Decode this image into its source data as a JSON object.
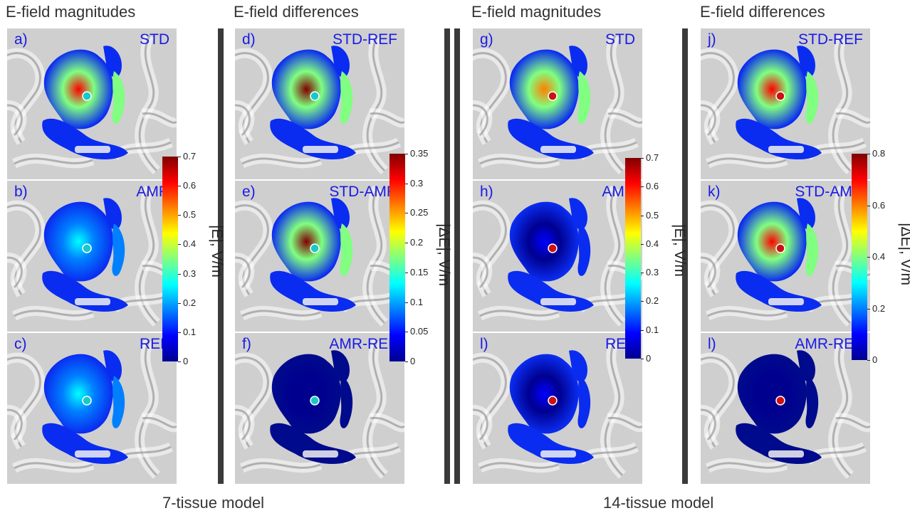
{
  "headers": [
    "E-field magnitudes",
    "E-field differences",
    "E-field magnitudes",
    "E-field differences"
  ],
  "footers": [
    "7-tissue model",
    "14-tissue model"
  ],
  "panels": [
    {
      "label": "a)",
      "tag": "STD"
    },
    {
      "label": "b)",
      "tag": "AMR"
    },
    {
      "label": "c)",
      "tag": "REF"
    },
    {
      "label": "d)",
      "tag": "STD-REF"
    },
    {
      "label": "e)",
      "tag": "STD-AMR"
    },
    {
      "label": "f)",
      "tag": "AMR-REF"
    },
    {
      "label": "g)",
      "tag": "STD"
    },
    {
      "label": "h)",
      "tag": "AMR"
    },
    {
      "label": "l)",
      "tag": "REF"
    },
    {
      "label": "j)",
      "tag": "STD-REF"
    },
    {
      "label": "k)",
      "tag": "STD-AMR"
    },
    {
      "label": "l)",
      "tag": "AMR-REF"
    }
  ],
  "colorbars": [
    {
      "label": "|E|, V/m",
      "ticks": [
        "0.7",
        "0.6",
        "0.5",
        "0.4",
        "0.3",
        "0.2",
        "0.1",
        "0"
      ]
    },
    {
      "label": "|ΔE|, V/m",
      "ticks": [
        "0.35",
        "0.3",
        "0.25",
        "0.2",
        "0.15",
        "0.1",
        "0.05",
        "0"
      ]
    },
    {
      "label": "|E|, V/m",
      "ticks": [
        "0.7",
        "0.6",
        "0.5",
        "0.4",
        "0.3",
        "0.2",
        "0.1",
        "0"
      ]
    },
    {
      "label": "|ΔE|, V/m",
      "ticks": [
        "0.8",
        "0.6",
        "0.4",
        "0.2",
        "0"
      ]
    }
  ],
  "colormap": [
    "#00008f",
    "#0000ff",
    "#0080ff",
    "#00ffff",
    "#80ff80",
    "#ffff00",
    "#ff8000",
    "#ff0000",
    "#800000"
  ],
  "marker_colors": {
    "model7": "#19c9c9",
    "model14": "#cc1111"
  }
}
